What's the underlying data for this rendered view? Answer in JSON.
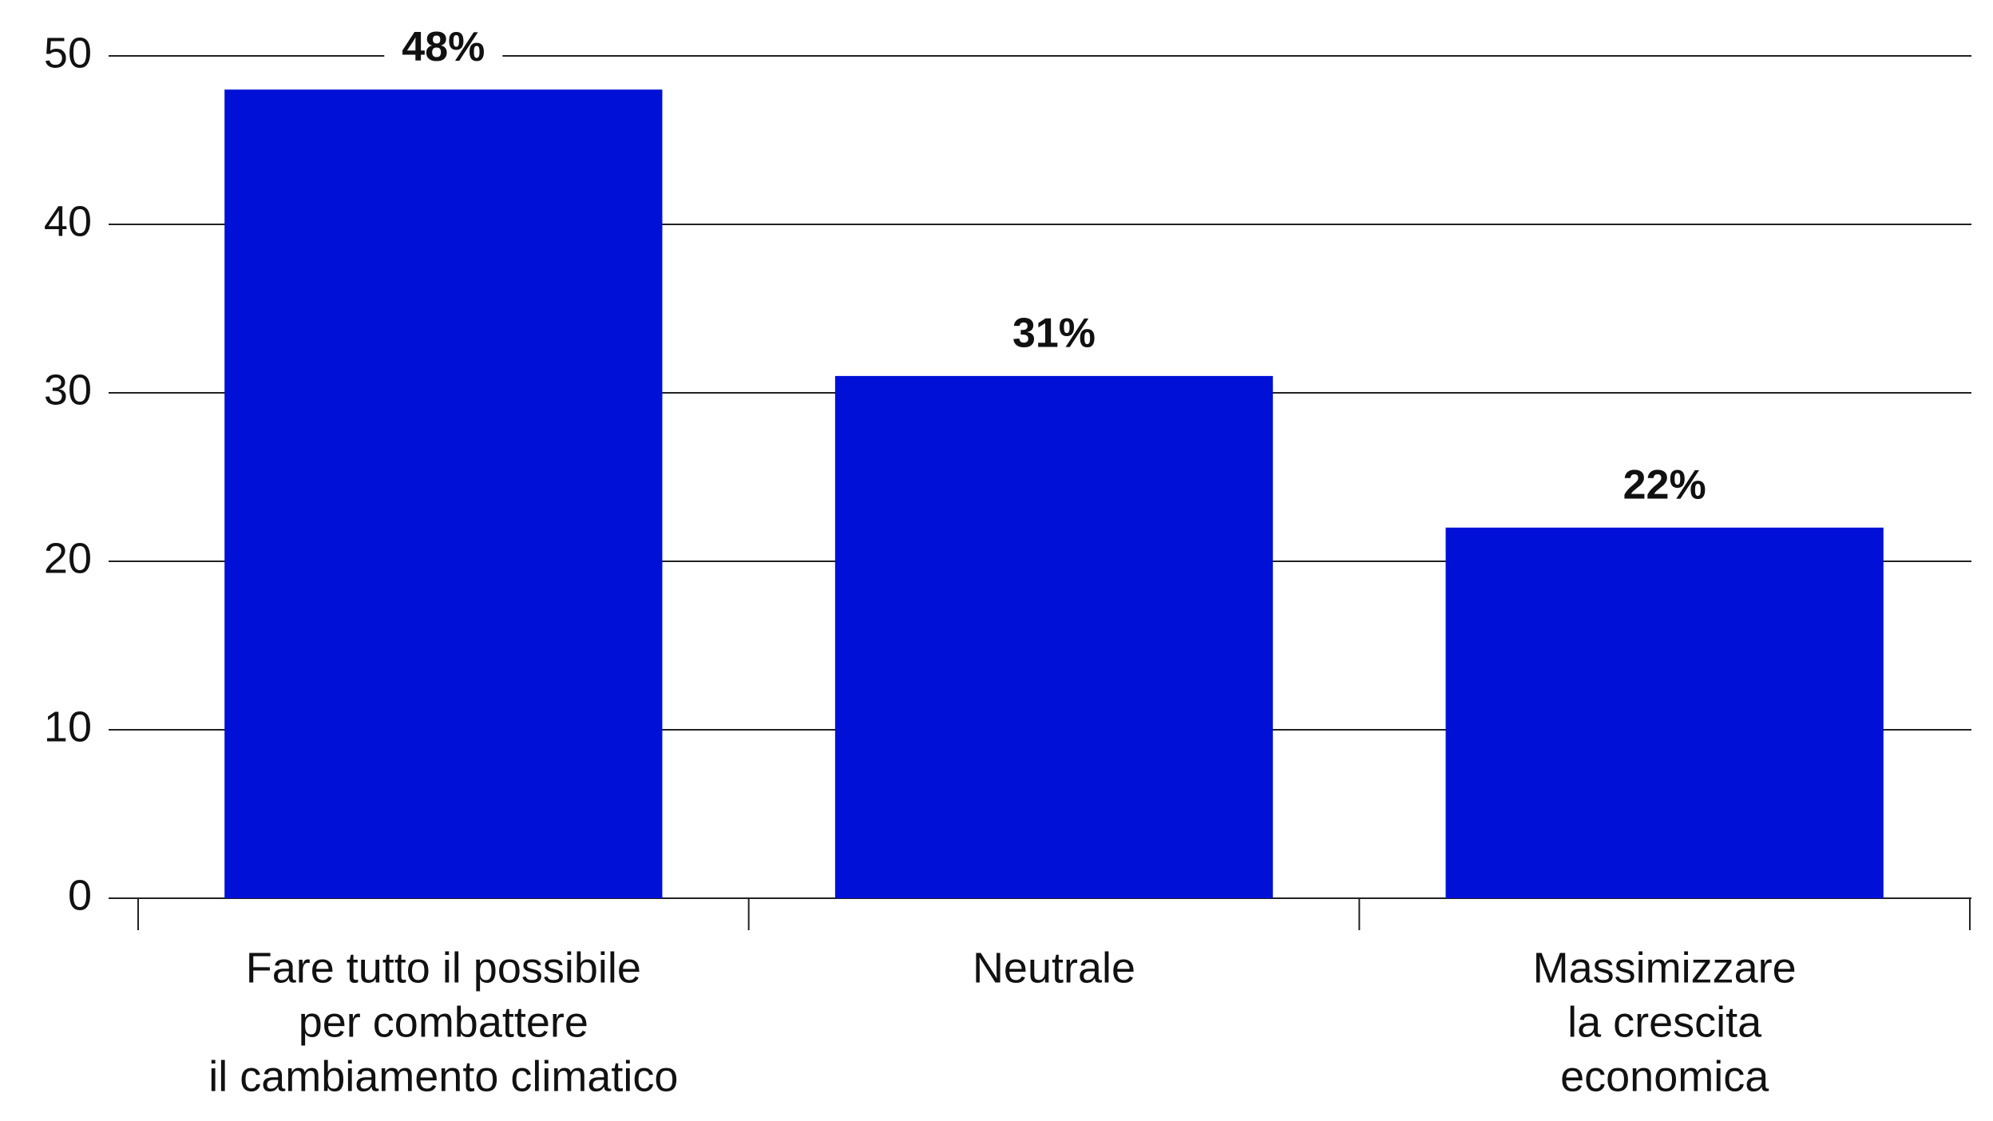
{
  "chart_data": {
    "type": "bar",
    "categories": [
      [
        "Fare tutto il possibile",
        "per combattere",
        "il cambiamento climatico"
      ],
      [
        "Neutrale"
      ],
      [
        "Massimizzare",
        "la crescita",
        "economica"
      ]
    ],
    "values": [
      48,
      31,
      22
    ],
    "value_labels": [
      "48%",
      "31%",
      "22%"
    ],
    "color": "#0010d6",
    "ylim": [
      0,
      50
    ],
    "yticks": [
      0,
      10,
      20,
      30,
      40,
      50
    ],
    "grid": true
  }
}
